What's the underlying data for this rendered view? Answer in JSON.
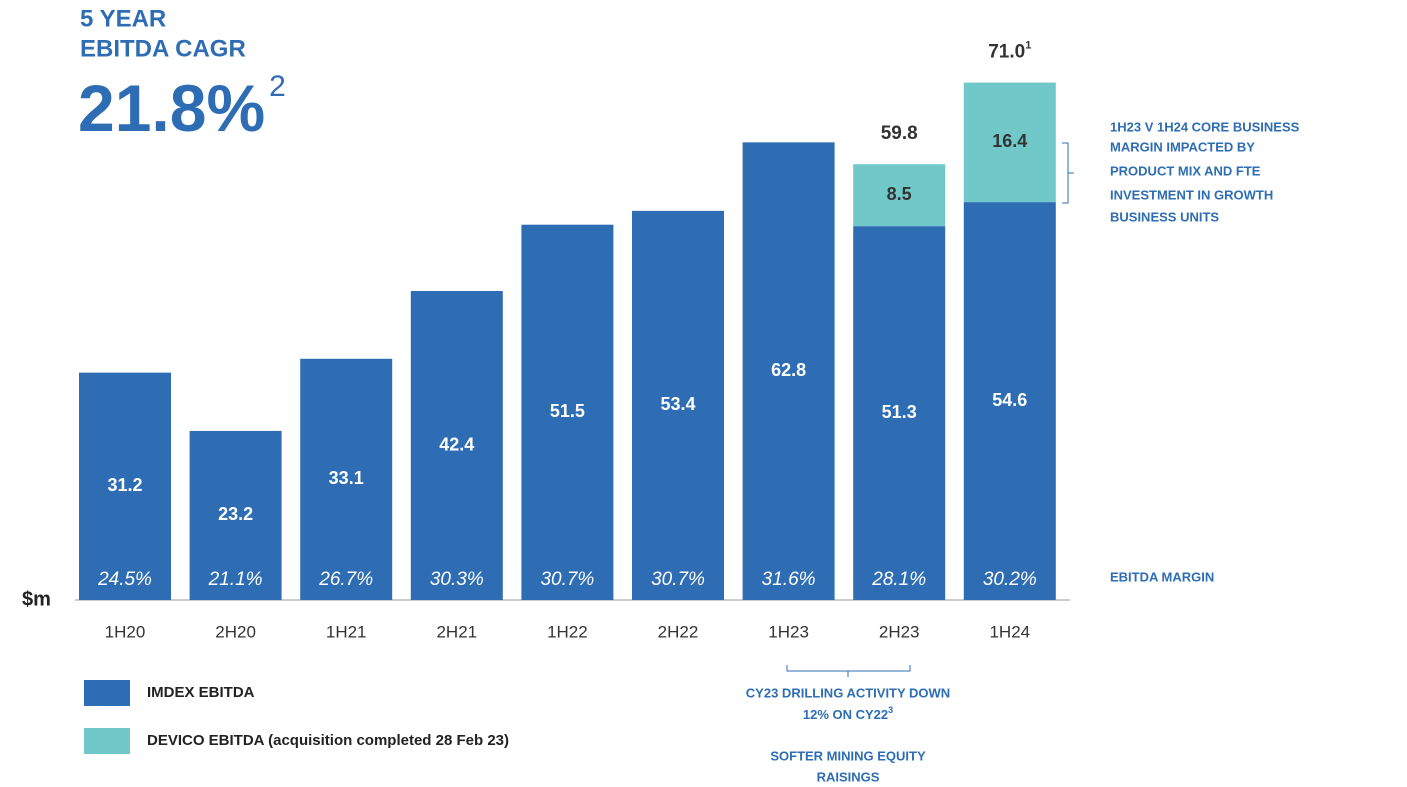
{
  "chart_data": {
    "type": "bar",
    "stacked": true,
    "title_lines": [
      "5 YEAR",
      "EBITDA CAGR"
    ],
    "headline": "21.8%",
    "headline_note": "2",
    "y_unit": "$m",
    "categories": [
      "1H20",
      "2H20",
      "1H21",
      "2H21",
      "1H22",
      "2H22",
      "1H23",
      "2H23",
      "1H24"
    ],
    "series": [
      {
        "name": "IMDEX EBITDA",
        "color": "#2e6db4",
        "values": [
          31.2,
          23.2,
          33.1,
          42.4,
          51.5,
          53.4,
          62.8,
          51.3,
          54.6
        ]
      },
      {
        "name": "DEVICO EBITDA (acquisition completed 28 Feb 23)",
        "color": "#70c8c8",
        "values": [
          null,
          null,
          null,
          null,
          null,
          null,
          null,
          8.5,
          16.4
        ]
      }
    ],
    "totals": {
      "values": [
        null,
        null,
        null,
        null,
        null,
        null,
        null,
        59.8,
        71.0
      ],
      "value_labels": [
        null,
        null,
        null,
        null,
        null,
        null,
        null,
        "59.8",
        "71.0"
      ],
      "notes": [
        null,
        null,
        null,
        null,
        null,
        null,
        null,
        null,
        "1"
      ]
    },
    "margins": {
      "name": "EBITDA MARGIN",
      "labels": [
        "24.5%",
        "21.1%",
        "26.7%",
        "30.3%",
        "30.7%",
        "30.7%",
        "31.6%",
        "28.1%",
        "30.2%"
      ]
    },
    "ylim": [
      0,
      80
    ],
    "annotations": {
      "right": [
        "1H23 V 1H24 CORE BUSINESS",
        "MARGIN IMPACTED  BY",
        "PRODUCT MIX  AND FTE",
        "INVESTMENT IN GROWTH",
        "BUSINESS UNITS"
      ],
      "bottom_1": [
        "CY23 DRILLING ACTIVITY DOWN",
        "12% ON CY22"
      ],
      "bottom_1_note": "3",
      "bottom_2": [
        "SOFTER MINING EQUITY",
        "RAISINGS"
      ]
    }
  }
}
